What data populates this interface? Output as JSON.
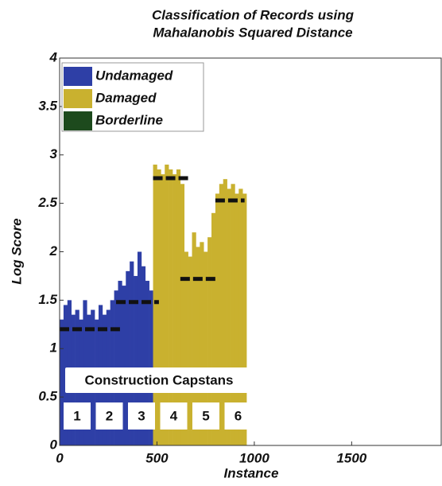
{
  "chart_data": {
    "type": "bar",
    "title": "Classification of Records using",
    "subtitle": "Mahalanobis Squared Distance",
    "x_label": "Instance",
    "y_label": "Log Score",
    "xlim": [
      0,
      1960
    ],
    "xticks": [
      0,
      500,
      1000,
      1500
    ],
    "ylim": [
      0,
      4
    ],
    "yticks": [
      0,
      0.5,
      1,
      1.5,
      2,
      2.5,
      3,
      3.5,
      4
    ],
    "bar_width": 20,
    "series": [
      {
        "name": "Undamaged",
        "color": "#2e3fa6",
        "x": [
          0,
          20,
          40,
          60,
          80,
          100,
          120,
          140,
          160,
          180,
          200,
          220,
          240,
          260,
          280,
          300,
          320,
          340,
          360,
          380,
          400,
          420,
          440,
          460
        ],
        "values": [
          1.3,
          1.45,
          1.5,
          1.35,
          1.4,
          1.3,
          1.5,
          1.35,
          1.4,
          1.3,
          1.45,
          1.35,
          1.4,
          1.5,
          1.6,
          1.7,
          1.65,
          1.8,
          1.9,
          1.75,
          2.0,
          1.85,
          1.7,
          1.6
        ]
      },
      {
        "name": "Damaged",
        "color": "#c9b12f",
        "x": [
          480,
          500,
          520,
          540,
          560,
          580,
          600,
          620,
          640,
          660,
          680,
          700,
          720,
          740,
          760,
          780,
          800,
          820,
          840,
          860,
          880,
          900,
          920,
          940
        ],
        "values": [
          2.9,
          2.85,
          2.8,
          2.9,
          2.85,
          2.8,
          2.85,
          2.7,
          2.0,
          1.95,
          2.2,
          2.05,
          2.1,
          2.0,
          2.15,
          2.4,
          2.6,
          2.7,
          2.75,
          2.65,
          2.7,
          2.6,
          2.65,
          2.6
        ]
      },
      {
        "name": "Borderline",
        "color": "#1d4a1d",
        "x": [],
        "values": []
      }
    ],
    "thresholds": [
      {
        "x": [
          0,
          310
        ],
        "value": 1.2
      },
      {
        "x": [
          290,
          510
        ],
        "value": 1.48
      },
      {
        "x": [
          480,
          660
        ],
        "value": 2.76
      },
      {
        "x": [
          620,
          800
        ],
        "value": 1.72
      },
      {
        "x": [
          800,
          950
        ],
        "value": 2.53
      }
    ],
    "annotation": {
      "title": "Construction Capstans",
      "labels": [
        "1",
        "2",
        "3",
        "4",
        "5",
        "6"
      ]
    }
  }
}
